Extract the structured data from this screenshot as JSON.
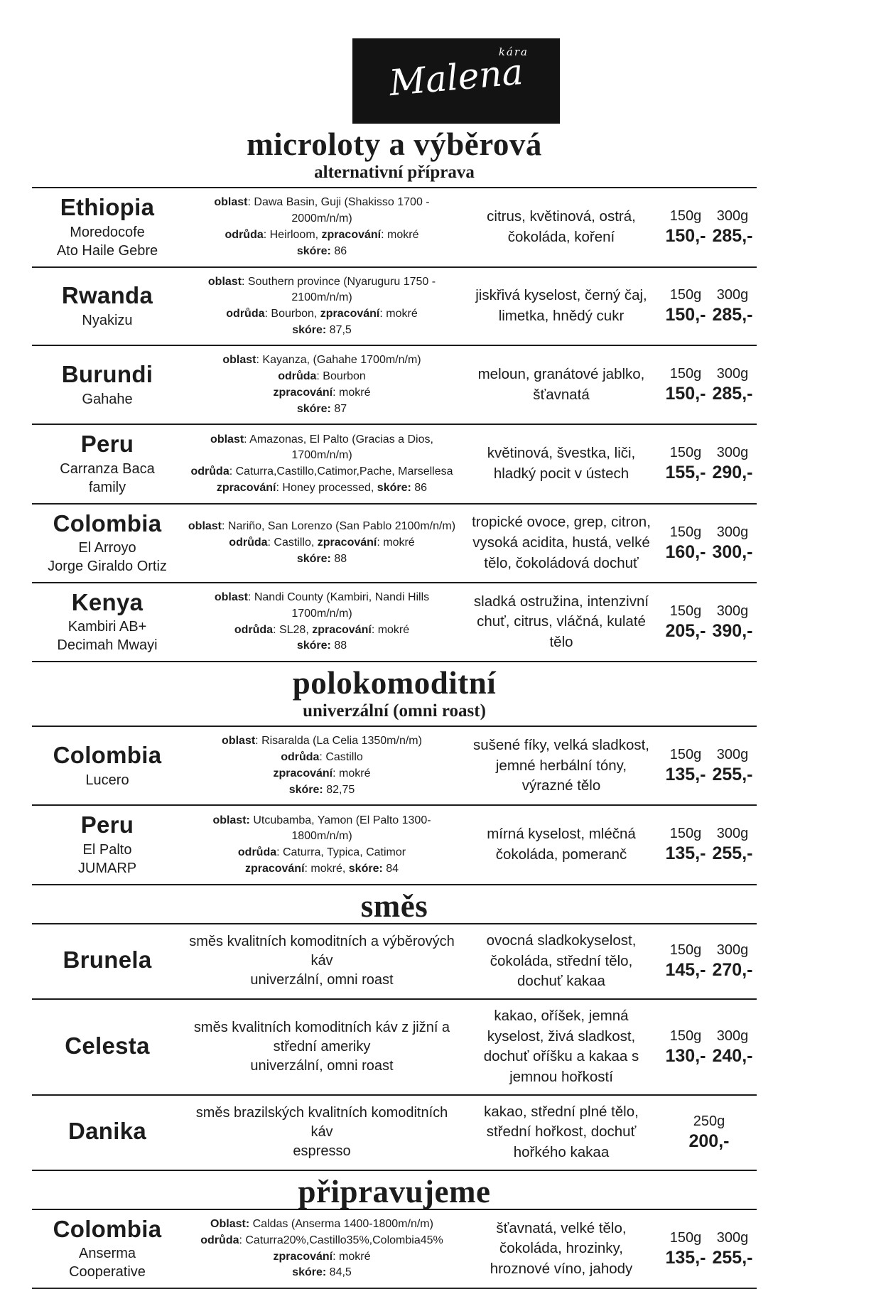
{
  "logo": {
    "script_text": "Malena",
    "small_text": "kára"
  },
  "sections": [
    {
      "title": "microloty a výběrová",
      "subtitle": "alternativní příprava",
      "rows": [
        {
          "name": "Ethiopia",
          "subnames": [
            "Moredocofe",
            "Ato Haile Gebre"
          ],
          "details": [
            [
              {
                "b": true,
                "t": "oblast"
              },
              {
                "b": false,
                "t": ": Dawa Basin, Guji (Shakisso 1700 - 2000m/n/m)"
              }
            ],
            [
              {
                "b": true,
                "t": "odrůda"
              },
              {
                "b": false,
                "t": ": Heirloom, "
              },
              {
                "b": true,
                "t": "zpracování"
              },
              {
                "b": false,
                "t": ": mokré"
              }
            ],
            [
              {
                "b": true,
                "t": "skóre:"
              },
              {
                "b": false,
                "t": " 86"
              }
            ]
          ],
          "taste": "citrus, květinová, ostrá, čokoláda, koření",
          "prices": [
            {
              "weight": "150g",
              "price": "150,-"
            },
            {
              "weight": "300g",
              "price": "285,-"
            }
          ]
        },
        {
          "name": "Rwanda",
          "subnames": [
            "Nyakizu"
          ],
          "details": [
            [
              {
                "b": true,
                "t": "oblast"
              },
              {
                "b": false,
                "t": ": Southern province (Nyaruguru 1750 - 2100m/n/m)"
              }
            ],
            [
              {
                "b": true,
                "t": "odrůda"
              },
              {
                "b": false,
                "t": ": Bourbon, "
              },
              {
                "b": true,
                "t": "zpracování"
              },
              {
                "b": false,
                "t": ": mokré"
              }
            ],
            [
              {
                "b": true,
                "t": "skóre:"
              },
              {
                "b": false,
                "t": " 87,5"
              }
            ]
          ],
          "taste": "jiskřivá kyselost, černý čaj, limetka, hnědý cukr",
          "prices": [
            {
              "weight": "150g",
              "price": "150,-"
            },
            {
              "weight": "300g",
              "price": "285,-"
            }
          ]
        },
        {
          "name": "Burundi",
          "subnames": [
            "Gahahe"
          ],
          "details": [
            [
              {
                "b": true,
                "t": "oblast"
              },
              {
                "b": false,
                "t": ": Kayanza, (Gahahe 1700m/n/m)"
              }
            ],
            [
              {
                "b": true,
                "t": "odrůda"
              },
              {
                "b": false,
                "t": ": Bourbon"
              }
            ],
            [
              {
                "b": true,
                "t": "zpracování"
              },
              {
                "b": false,
                "t": ": mokré"
              }
            ],
            [
              {
                "b": true,
                "t": "skóre:"
              },
              {
                "b": false,
                "t": " 87"
              }
            ]
          ],
          "taste": "meloun, granátové jablko, šťavnatá",
          "prices": [
            {
              "weight": "150g",
              "price": "150,-"
            },
            {
              "weight": "300g",
              "price": "285,-"
            }
          ]
        },
        {
          "name": "Peru",
          "subnames": [
            "Carranza Baca",
            "family"
          ],
          "details": [
            [
              {
                "b": true,
                "t": "oblast"
              },
              {
                "b": false,
                "t": ": Amazonas, El Palto (Gracias a Dios, 1700m/n/m)"
              }
            ],
            [
              {
                "b": true,
                "t": "odrůda"
              },
              {
                "b": false,
                "t": ": Caturra,Castillo,Catimor,Pache, Marsellesa"
              }
            ],
            [
              {
                "b": true,
                "t": "zpracování"
              },
              {
                "b": false,
                "t": ": Honey processed, "
              },
              {
                "b": true,
                "t": "skóre:"
              },
              {
                "b": false,
                "t": " 86"
              }
            ]
          ],
          "taste": "květinová, švestka, liči, hladký pocit v ústech",
          "prices": [
            {
              "weight": "150g",
              "price": "155,-"
            },
            {
              "weight": "300g",
              "price": "290,-"
            }
          ]
        },
        {
          "name": "Colombia",
          "subnames": [
            "El Arroyo",
            "Jorge Giraldo Ortiz"
          ],
          "details": [
            [
              {
                "b": true,
                "t": "oblast"
              },
              {
                "b": false,
                "t": ": Nariño, San Lorenzo (San Pablo 2100m/n/m)"
              }
            ],
            [
              {
                "b": true,
                "t": "odrůda"
              },
              {
                "b": false,
                "t": ": Castillo, "
              },
              {
                "b": true,
                "t": "zpracování"
              },
              {
                "b": false,
                "t": ": mokré"
              }
            ],
            [
              {
                "b": true,
                "t": "skóre:"
              },
              {
                "b": false,
                "t": " 88"
              }
            ]
          ],
          "taste": "tropické ovoce, grep, citron, vysoká acidita, hustá, velké tělo, čokoládová dochuť",
          "prices": [
            {
              "weight": "150g",
              "price": "160,-"
            },
            {
              "weight": "300g",
              "price": "300,-"
            }
          ]
        },
        {
          "name": "Kenya",
          "subnames": [
            "Kambiri AB+",
            "Decimah Mwayi"
          ],
          "details": [
            [
              {
                "b": true,
                "t": "oblast"
              },
              {
                "b": false,
                "t": ": Nandi County (Kambiri, Nandi Hills 1700m/n/m)"
              }
            ],
            [
              {
                "b": true,
                "t": "odrůda"
              },
              {
                "b": false,
                "t": ": SL28, "
              },
              {
                "b": true,
                "t": "zpracování"
              },
              {
                "b": false,
                "t": ": mokré"
              }
            ],
            [
              {
                "b": true,
                "t": "skóre:"
              },
              {
                "b": false,
                "t": " 88"
              }
            ]
          ],
          "taste": "sladká ostružina, intenzivní chuť, citrus, vláčná, kulaté tělo",
          "prices": [
            {
              "weight": "150g",
              "price": "205,-"
            },
            {
              "weight": "300g",
              "price": "390,-"
            }
          ]
        }
      ]
    },
    {
      "title": "polokomoditní",
      "subtitle": "univerzální (omni roast)",
      "rows": [
        {
          "name": "Colombia",
          "subnames": [
            "Lucero"
          ],
          "details": [
            [
              {
                "b": true,
                "t": "oblast"
              },
              {
                "b": false,
                "t": ": Risaralda (La Celia 1350m/n/m)"
              }
            ],
            [
              {
                "b": true,
                "t": "odrůda"
              },
              {
                "b": false,
                "t": ": Castillo"
              }
            ],
            [
              {
                "b": true,
                "t": "zpracování"
              },
              {
                "b": false,
                "t": ": mokré"
              }
            ],
            [
              {
                "b": true,
                "t": "skóre:"
              },
              {
                "b": false,
                "t": " 82,75"
              }
            ]
          ],
          "taste": "sušené fíky, velká sladkost, jemné herbální tóny, výrazné tělo",
          "prices": [
            {
              "weight": "150g",
              "price": "135,-"
            },
            {
              "weight": "300g",
              "price": "255,-"
            }
          ]
        },
        {
          "name": "Peru",
          "subnames": [
            "El Palto",
            "JUMARP"
          ],
          "details": [
            [
              {
                "b": true,
                "t": "oblast:"
              },
              {
                "b": false,
                "t": " Utcubamba, Yamon (El Palto 1300-1800m/n/m)"
              }
            ],
            [
              {
                "b": true,
                "t": "odrůda"
              },
              {
                "b": false,
                "t": ": Caturra, Typica, Catimor"
              }
            ],
            [
              {
                "b": true,
                "t": "zpracování"
              },
              {
                "b": false,
                "t": ": mokré, "
              },
              {
                "b": true,
                "t": "skóre:"
              },
              {
                "b": false,
                "t": " 84"
              }
            ]
          ],
          "taste": "mírná kyselost, mléčná čokoláda, pomeranč",
          "prices": [
            {
              "weight": "150g",
              "price": "135,-"
            },
            {
              "weight": "300g",
              "price": "255,-"
            }
          ]
        }
      ]
    },
    {
      "title": "směs",
      "subtitle": "",
      "rows": [
        {
          "name": "Brunela",
          "subnames": [],
          "details_plain": true,
          "details": [
            [
              {
                "b": false,
                "t": "směs kvalitních komoditních a výběrových káv"
              }
            ],
            [
              {
                "b": false,
                "t": "univerzální, omni roast"
              }
            ]
          ],
          "taste": "ovocná sladkokyselost, čokoláda, střední tělo, dochuť kakaa",
          "prices": [
            {
              "weight": "150g",
              "price": "145,-"
            },
            {
              "weight": "300g",
              "price": "270,-"
            }
          ]
        },
        {
          "name": "Celesta",
          "subnames": [],
          "details_plain": true,
          "details": [
            [
              {
                "b": false,
                "t": "směs kvalitních komoditních káv z jižní a střední ameriky"
              }
            ],
            [
              {
                "b": false,
                "t": "univerzální, omni roast"
              }
            ]
          ],
          "taste": "kakao, oříšek, jemná kyselost, živá sladkost, dochuť oříšku a kakaa s jemnou hořkostí",
          "prices": [
            {
              "weight": "150g",
              "price": "130,-"
            },
            {
              "weight": "300g",
              "price": "240,-"
            }
          ]
        },
        {
          "name": "Danika",
          "subnames": [],
          "details_plain": true,
          "details": [
            [
              {
                "b": false,
                "t": "směs brazilských kvalitních komoditních káv"
              }
            ],
            [
              {
                "b": false,
                "t": "espresso"
              }
            ]
          ],
          "taste": "kakao, střední plné tělo, střední hořkost, dochuť hořkého kakaa",
          "prices": [
            {
              "weight": "250g",
              "price": "200,-"
            }
          ]
        }
      ]
    },
    {
      "title": "připravujeme",
      "subtitle": "",
      "rows": [
        {
          "name": "Colombia",
          "subnames": [
            "Anserma",
            "Cooperative"
          ],
          "details": [
            [
              {
                "b": true,
                "t": "Oblast:"
              },
              {
                "b": false,
                "t": " Caldas (Anserma 1400-1800m/n/m)"
              }
            ],
            [
              {
                "b": true,
                "t": "odrůda"
              },
              {
                "b": false,
                "t": ": Caturra20%,Castillo35%,Colombia45%"
              }
            ],
            [
              {
                "b": true,
                "t": "zpracování"
              },
              {
                "b": false,
                "t": ": mokré"
              }
            ],
            [
              {
                "b": true,
                "t": "skóre:"
              },
              {
                "b": false,
                "t": " 84,5"
              }
            ]
          ],
          "taste": "šťavnatá, velké tělo, čokoláda, hrozinky, hroznové víno, jahody",
          "prices": [
            {
              "weight": "150g",
              "price": "135,-"
            },
            {
              "weight": "300g",
              "price": "255,-"
            }
          ]
        }
      ]
    }
  ]
}
